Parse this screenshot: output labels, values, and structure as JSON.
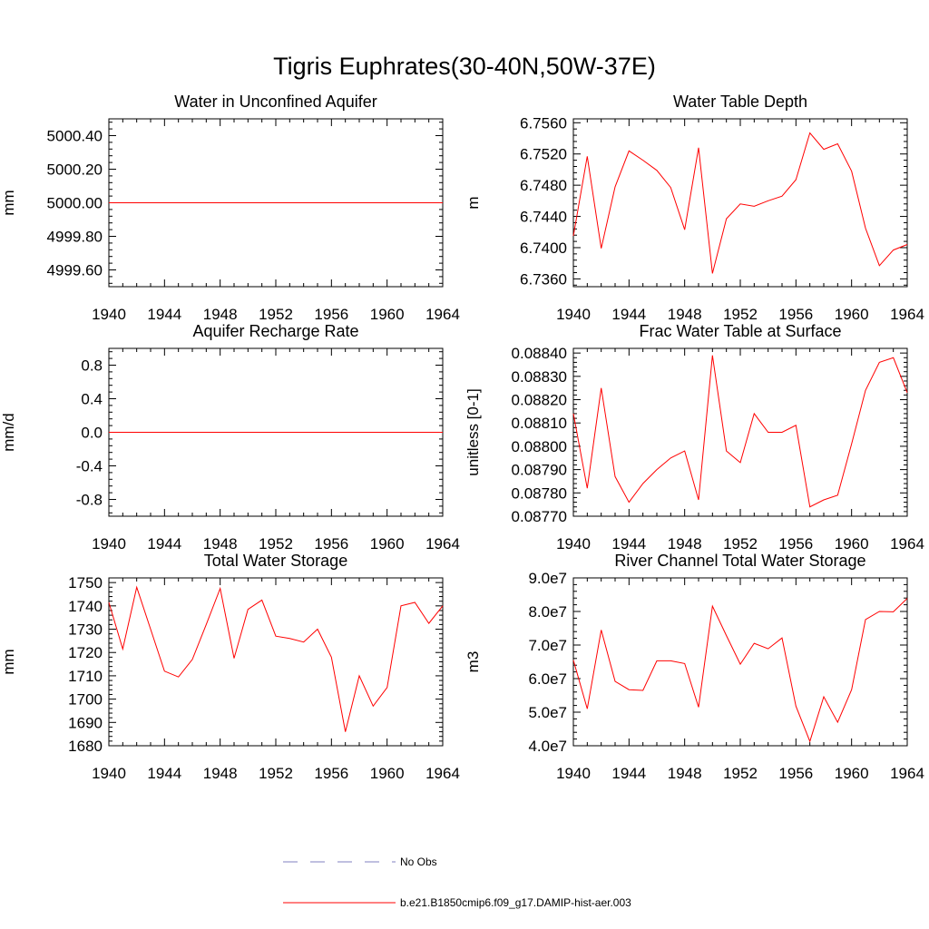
{
  "title": "Tigris Euphrates(30-40N,50W-37E)",
  "colors": {
    "model": "#ff0000",
    "obs": "#8080c0",
    "axis": "#000000"
  },
  "legend": [
    {
      "label": "No Obs",
      "style": "dashed",
      "color": "#8080c0"
    },
    {
      "label": "b.e21.B1850cmip6.f09_g17.DAMIP-hist-aer.003",
      "style": "solid",
      "color": "#ff0000"
    }
  ],
  "chart_data": [
    {
      "type": "line",
      "title": "Water in Unconfined Aquifer",
      "ylabel": "mm",
      "xlim": [
        1940,
        1964
      ],
      "ylim": [
        4999.5,
        5000.5
      ],
      "x_ticks": [
        1940,
        1944,
        1948,
        1952,
        1956,
        1960,
        1964
      ],
      "y_ticks": [
        4999.6,
        4999.8,
        5000.0,
        5000.2,
        5000.4
      ],
      "y_tick_labels": [
        "4999.60",
        "4999.80",
        "5000.00",
        "5000.20",
        "5000.40"
      ],
      "x": [
        1940,
        1964
      ],
      "values": [
        5000.0,
        5000.0
      ]
    },
    {
      "type": "line",
      "title": "Water Table Depth",
      "ylabel": "m",
      "xlim": [
        1940,
        1964
      ],
      "ylim": [
        6.735,
        6.7565
      ],
      "x_ticks": [
        1940,
        1944,
        1948,
        1952,
        1956,
        1960,
        1964
      ],
      "y_ticks": [
        6.736,
        6.74,
        6.744,
        6.748,
        6.752,
        6.756
      ],
      "y_tick_labels": [
        "6.7360",
        "6.7400",
        "6.7440",
        "6.7480",
        "6.7520",
        "6.7560"
      ],
      "x": [
        1940,
        1941,
        1942,
        1943,
        1944,
        1945,
        1946,
        1947,
        1948,
        1949,
        1950,
        1951,
        1952,
        1953,
        1954,
        1955,
        1956,
        1957,
        1958,
        1959,
        1960,
        1961,
        1962,
        1963,
        1964
      ],
      "values": [
        6.7415,
        6.7517,
        6.7399,
        6.7478,
        6.7524,
        6.7512,
        6.7499,
        6.7477,
        6.7423,
        6.7528,
        6.7367,
        6.7437,
        6.7456,
        6.7453,
        6.746,
        6.7466,
        6.7487,
        6.7547,
        6.7526,
        6.7533,
        6.7498,
        6.7425,
        6.7377,
        6.7397,
        6.7404
      ]
    },
    {
      "type": "line",
      "title": "Aquifer Recharge Rate",
      "ylabel": "mm/d",
      "xlim": [
        1940,
        1964
      ],
      "ylim": [
        -1.0,
        1.0
      ],
      "x_ticks": [
        1940,
        1944,
        1948,
        1952,
        1956,
        1960,
        1964
      ],
      "y_ticks": [
        -0.8,
        -0.4,
        0.0,
        0.4,
        0.8
      ],
      "y_tick_labels": [
        "-0.8",
        "-0.4",
        "0.0",
        "0.4",
        "0.8"
      ],
      "x": [
        1940,
        1964
      ],
      "values": [
        0.0,
        0.0
      ]
    },
    {
      "type": "line",
      "title": "Frac Water Table at Surface",
      "ylabel": "unitless [0-1]",
      "xlim": [
        1940,
        1964
      ],
      "ylim": [
        0.0877,
        0.08842
      ],
      "x_ticks": [
        1940,
        1944,
        1948,
        1952,
        1956,
        1960,
        1964
      ],
      "y_ticks": [
        0.0877,
        0.0878,
        0.0879,
        0.088,
        0.0881,
        0.0882,
        0.0883,
        0.0884
      ],
      "y_tick_labels": [
        "0.08770",
        "0.08780",
        "0.08790",
        "0.08800",
        "0.08810",
        "0.08820",
        "0.08830",
        "0.08840"
      ],
      "x": [
        1940,
        1941,
        1942,
        1943,
        1944,
        1945,
        1946,
        1947,
        1948,
        1949,
        1950,
        1951,
        1952,
        1953,
        1954,
        1955,
        1956,
        1957,
        1958,
        1959,
        1960,
        1961,
        1962,
        1963,
        1964
      ],
      "values": [
        0.08814,
        0.08782,
        0.08825,
        0.08787,
        0.08776,
        0.08784,
        0.0879,
        0.08795,
        0.08798,
        0.08777,
        0.08839,
        0.08798,
        0.08793,
        0.08814,
        0.08806,
        0.08806,
        0.08809,
        0.08774,
        0.08777,
        0.08779,
        0.08801,
        0.08824,
        0.08836,
        0.08838,
        0.08823
      ]
    },
    {
      "type": "line",
      "title": "Total Water Storage",
      "ylabel": "mm",
      "xlim": [
        1940,
        1964
      ],
      "ylim": [
        1680,
        1752
      ],
      "x_ticks": [
        1940,
        1944,
        1948,
        1952,
        1956,
        1960,
        1964
      ],
      "y_ticks": [
        1680,
        1690,
        1700,
        1710,
        1720,
        1730,
        1740,
        1750
      ],
      "y_tick_labels": [
        "1680",
        "1690",
        "1700",
        "1710",
        "1720",
        "1730",
        "1740",
        "1750"
      ],
      "x": [
        1940,
        1941,
        1942,
        1943,
        1944,
        1945,
        1946,
        1947,
        1948,
        1949,
        1950,
        1951,
        1952,
        1953,
        1954,
        1955,
        1956,
        1957,
        1958,
        1959,
        1960,
        1961,
        1962,
        1963,
        1964
      ],
      "values": [
        1741.5,
        1721.5,
        1748.0,
        1730.0,
        1712.0,
        1709.5,
        1717.0,
        1732.0,
        1747.5,
        1717.5,
        1738.5,
        1742.5,
        1727.0,
        1726.0,
        1724.5,
        1730.0,
        1718.0,
        1686.0,
        1710.0,
        1697.0,
        1705.0,
        1740.0,
        1741.5,
        1732.5,
        1740.0
      ]
    },
    {
      "type": "line",
      "title": "River Channel Total Water Storage",
      "ylabel": "m3",
      "xlim": [
        1940,
        1964
      ],
      "ylim": [
        40000000,
        90000000
      ],
      "x_ticks": [
        1940,
        1944,
        1948,
        1952,
        1956,
        1960,
        1964
      ],
      "y_ticks": [
        40000000,
        50000000,
        60000000,
        70000000,
        80000000,
        90000000
      ],
      "y_tick_labels": [
        "4.0e7",
        "5.0e7",
        "6.0e7",
        "7.0e7",
        "8.0e7",
        "9.0e7"
      ],
      "x": [
        1940,
        1941,
        1942,
        1943,
        1944,
        1945,
        1946,
        1947,
        1948,
        1949,
        1950,
        1951,
        1952,
        1953,
        1954,
        1955,
        1956,
        1957,
        1958,
        1959,
        1960,
        1961,
        1962,
        1963,
        1964
      ],
      "values": [
        65500000,
        51000000,
        74500000,
        59200000,
        56700000,
        56500000,
        65300000,
        65300000,
        64500000,
        51500000,
        81600000,
        72800000,
        64300000,
        70500000,
        68900000,
        72100000,
        51800000,
        41300000,
        54600000,
        47000000,
        56700000,
        77600000,
        80000000,
        79900000,
        83900000
      ]
    }
  ]
}
